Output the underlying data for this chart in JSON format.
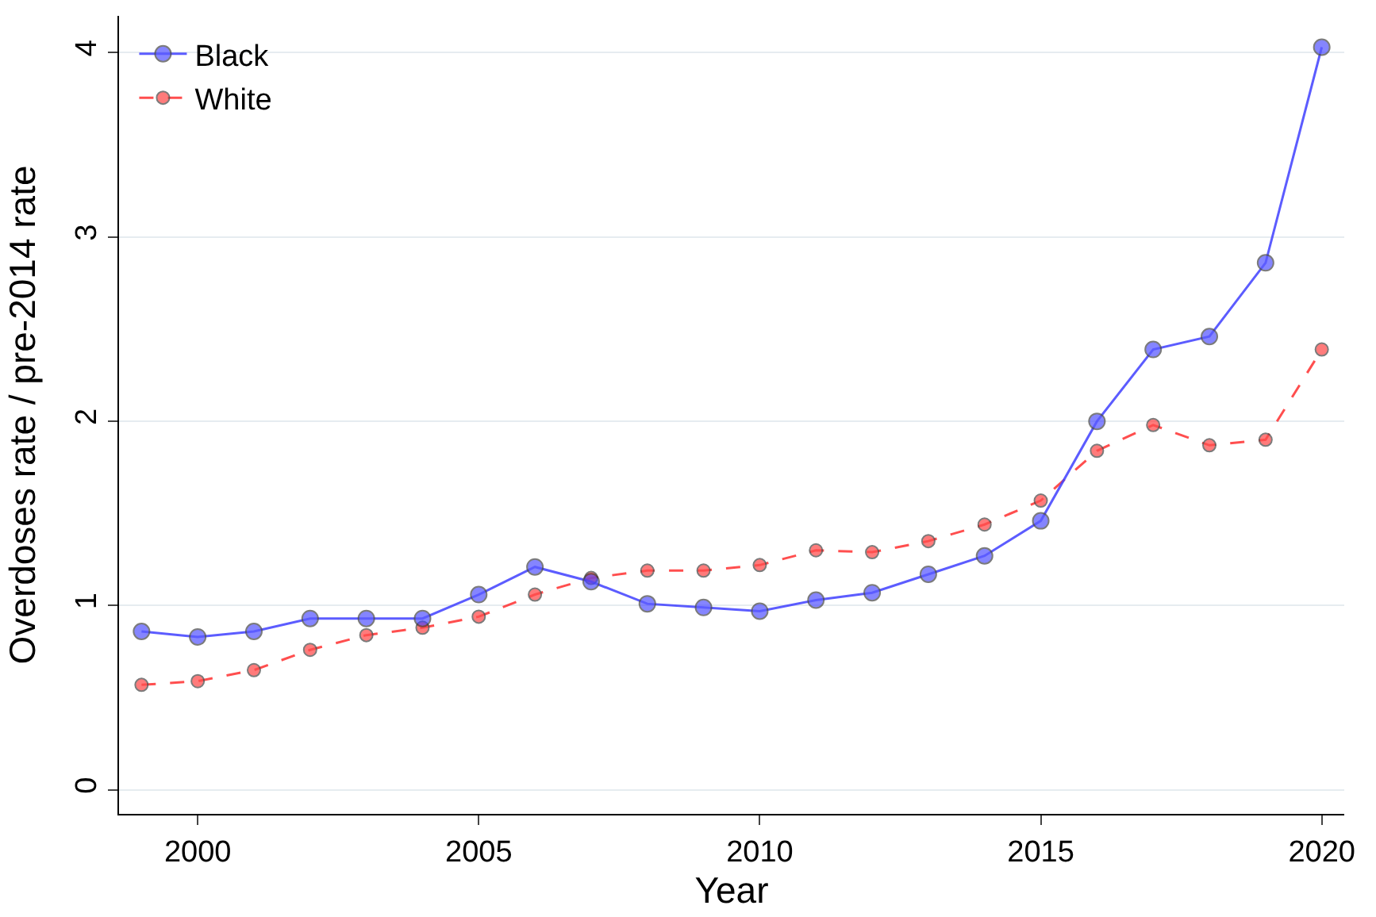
{
  "chart_data": {
    "type": "line",
    "xlabel": "Year",
    "ylabel": "Overdoses rate / pre-2014 rate",
    "x": [
      1999,
      2000,
      2001,
      2002,
      2003,
      2004,
      2005,
      2006,
      2007,
      2008,
      2009,
      2010,
      2011,
      2012,
      2013,
      2014,
      2015,
      2016,
      2017,
      2018,
      2019,
      2020
    ],
    "series": [
      {
        "name": "Black",
        "color": "#4040ff",
        "line_style": "solid",
        "values": [
          0.86,
          0.83,
          0.86,
          0.93,
          0.93,
          0.93,
          1.06,
          1.21,
          1.13,
          1.01,
          0.99,
          0.97,
          1.03,
          1.07,
          1.17,
          1.27,
          1.46,
          2.0,
          2.39,
          2.46,
          2.86,
          4.03
        ]
      },
      {
        "name": "White",
        "color": "#ff3030",
        "line_style": "dashed",
        "values": [
          0.57,
          0.59,
          0.65,
          0.76,
          0.84,
          0.88,
          0.94,
          1.06,
          1.15,
          1.19,
          1.19,
          1.22,
          1.3,
          1.29,
          1.35,
          1.44,
          1.57,
          1.84,
          1.98,
          1.87,
          1.9,
          2.39
        ]
      }
    ],
    "xlim": [
      1998.6,
      2020.4
    ],
    "xticks": [
      2000,
      2005,
      2010,
      2015,
      2020
    ],
    "ylim": [
      -0.13,
      4.2
    ],
    "yticks": [
      0,
      1,
      2,
      3,
      4
    ],
    "grid": "y",
    "legend": "top left",
    "marker": "circle"
  }
}
